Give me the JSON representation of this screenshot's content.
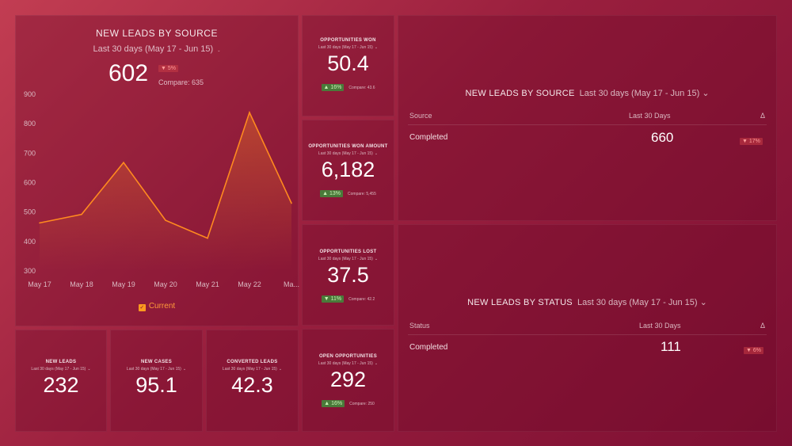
{
  "main_chart": {
    "title": "NEW LEADS BY SOURCE",
    "period": "Last 30 days (May 17 - Jun 15)",
    "value": "602",
    "change": "5%",
    "compare": "Compare: 635",
    "legend": "Current",
    "chart_data": {
      "type": "line",
      "x": [
        "May 17",
        "May 18",
        "May 19",
        "May 20",
        "May 21",
        "May 22",
        "Ma..."
      ],
      "series": [
        {
          "name": "Current",
          "values": [
            463,
            492,
            668,
            472,
            411,
            838,
            530
          ],
          "color": "#ff8a1f"
        }
      ],
      "ylim": [
        300,
        900
      ],
      "yticks": [
        "900",
        "800",
        "700",
        "600",
        "500",
        "400",
        "300"
      ],
      "xlabel": "",
      "ylabel": "",
      "grid": false,
      "legend_placement": "bottom"
    }
  },
  "kpis": {
    "opportunities_won": {
      "title": "OPPORTUNITIES WON",
      "period": "Last 30 days (May 17 - Jun 15)",
      "value": "50.4",
      "change": "16%",
      "compare": "Compare: 43.6"
    },
    "opportunities_won_amount": {
      "title": "OPPORTUNITIES WON AMOUNT",
      "period": "Last 30 days (May 17 - Jun 15)",
      "value": "6,182",
      "change": "13%",
      "compare": "Compare: 5,455"
    },
    "opportunities_lost": {
      "title": "OPPORTUNITIES LOST",
      "period": "Last 30 days (May 17 - Jun 15)",
      "value": "37.5",
      "change": "11%",
      "compare": "Compare: 42.2"
    },
    "open_opportunities": {
      "title": "OPEN OPPORTUNITIES",
      "period": "Last 30 days (May 17 - Jun 15)",
      "value": "292",
      "change": "16%",
      "compare": "Compare: 250"
    },
    "new_leads": {
      "title": "NEW LEADS",
      "period": "Last 30 days (May 17 - Jun 15)",
      "value": "232"
    },
    "new_cases": {
      "title": "NEW CASES",
      "period": "Last 30 days (May 17 - Jun 15)",
      "value": "95.1"
    },
    "converted_leads": {
      "title": "CONVERTED LEADS",
      "period": "Last 30 days (May 17 - Jun 15)",
      "value": "42.3"
    }
  },
  "table_source": {
    "title": "NEW LEADS BY SOURCE",
    "period": "Last 30 days (May 17 - Jun 15)",
    "headers": [
      "Source",
      "Last 30 Days",
      "Δ"
    ],
    "rows": [
      {
        "label": "Completed",
        "value": "660",
        "change": "17%"
      }
    ]
  },
  "table_status": {
    "title": "NEW LEADS BY STATUS",
    "period": "Last 30 days (May 17 - Jun 15)",
    "headers": [
      "Status",
      "Last 30 Days",
      "Δ"
    ],
    "rows": [
      {
        "label": "Completed",
        "value": "111",
        "change": "6%"
      }
    ]
  }
}
